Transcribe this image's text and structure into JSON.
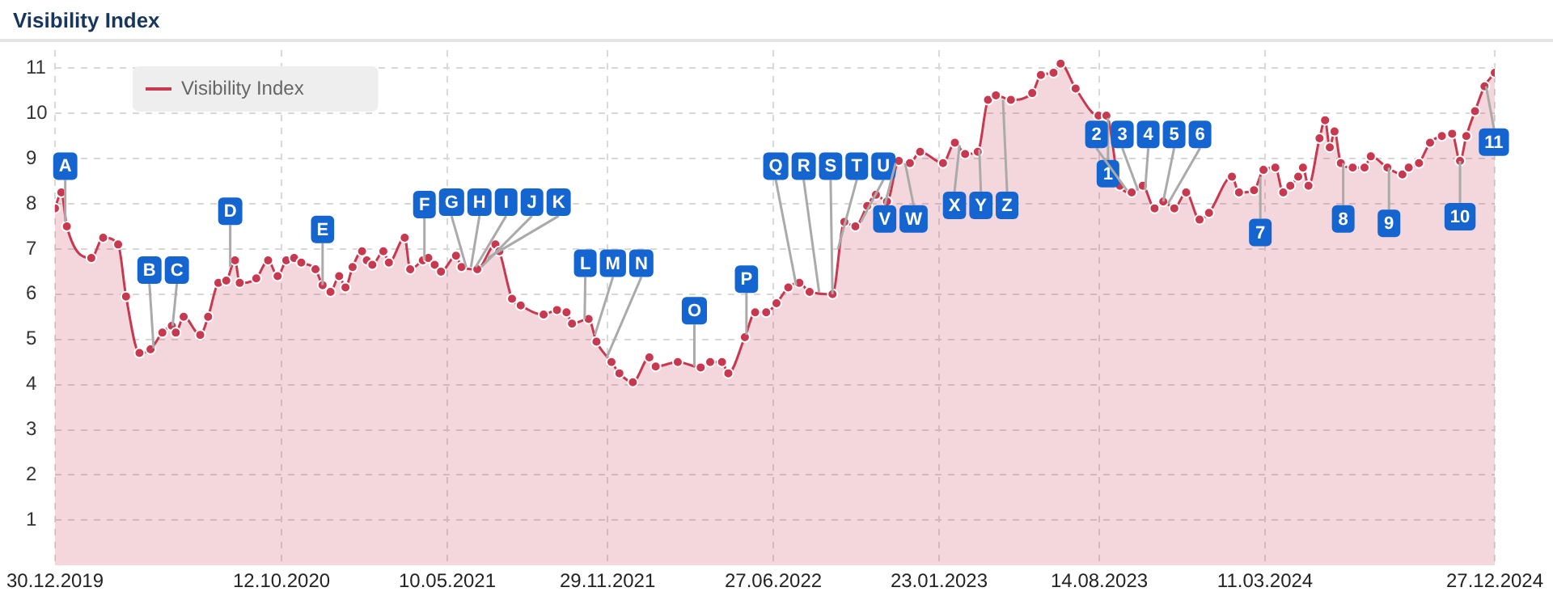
{
  "chart_data": {
    "type": "area",
    "title": "Visibility Index",
    "x": [
      "2019-12-30",
      "2020-01-07",
      "2020-01-14",
      "2020-02-14",
      "2020-02-29",
      "2020-03-19",
      "2020-03-29",
      "2020-04-15",
      "2020-04-29",
      "2020-05-14",
      "2020-05-26",
      "2020-05-31",
      "2020-06-10",
      "2020-07-01",
      "2020-07-11",
      "2020-07-24",
      "2020-08-03",
      "2020-08-14",
      "2020-08-20",
      "2020-09-10",
      "2020-09-25",
      "2020-10-07",
      "2020-10-18",
      "2020-10-28",
      "2020-11-06",
      "2020-11-24",
      "2020-12-03",
      "2020-12-13",
      "2020-12-24",
      "2021-01-01",
      "2021-01-10",
      "2021-01-22",
      "2021-01-28",
      "2021-02-04",
      "2021-02-18",
      "2021-02-25",
      "2021-03-17",
      "2021-03-24",
      "2021-04-09",
      "2021-04-16",
      "2021-04-24",
      "2021-05-02",
      "2021-05-21",
      "2021-05-28",
      "2021-06-17",
      "2021-07-10",
      "2021-07-15",
      "2021-07-31",
      "2021-08-11",
      "2021-09-09",
      "2021-09-26",
      "2021-10-08",
      "2021-10-15",
      "2021-11-05",
      "2021-11-15",
      "2021-12-04",
      "2021-12-14",
      "2021-12-31",
      "2022-01-21",
      "2022-01-29",
      "2022-02-26",
      "2022-03-27",
      "2022-04-08",
      "2022-04-23",
      "2022-05-01",
      "2022-05-22",
      "2022-06-04",
      "2022-06-18",
      "2022-07-01",
      "2022-07-16",
      "2022-07-30",
      "2022-08-12",
      "2022-09-10",
      "2022-09-25",
      "2022-10-09",
      "2022-10-24",
      "2022-11-04",
      "2022-11-18",
      "2022-12-03",
      "2022-12-17",
      "2022-12-30",
      "2023-01-28",
      "2023-02-12",
      "2023-02-25",
      "2023-03-13",
      "2023-03-26",
      "2023-04-05",
      "2023-04-24",
      "2023-05-21",
      "2023-06-01",
      "2023-06-17",
      "2023-06-26",
      "2023-07-15",
      "2023-08-13",
      "2023-08-23",
      "2023-09-09",
      "2023-09-24",
      "2023-10-08",
      "2023-10-23",
      "2023-11-03",
      "2023-11-17",
      "2023-12-02",
      "2023-12-19",
      "2023-12-31",
      "2024-01-29",
      "2024-02-07",
      "2024-02-26",
      "2024-03-09",
      "2024-03-24",
      "2024-04-03",
      "2024-04-12",
      "2024-04-22",
      "2024-04-28",
      "2024-05-05",
      "2024-05-19",
      "2024-05-26",
      "2024-06-01",
      "2024-06-07",
      "2024-06-15",
      "2024-06-30",
      "2024-07-15",
      "2024-07-23",
      "2024-08-13",
      "2024-09-01",
      "2024-09-09",
      "2024-09-22",
      "2024-10-06",
      "2024-10-21",
      "2024-11-03",
      "2024-11-13",
      "2024-11-21",
      "2024-12-02",
      "2024-12-14",
      "2024-12-27"
    ],
    "series": [
      {
        "name": "Visibility Index",
        "color": "#c8384f",
        "values": [
          7.9,
          8.25,
          7.5,
          6.8,
          7.25,
          7.1,
          5.95,
          4.7,
          4.78,
          5.15,
          5.3,
          5.15,
          5.5,
          5.1,
          5.5,
          6.25,
          6.3,
          6.75,
          6.25,
          6.35,
          6.75,
          6.4,
          6.75,
          6.8,
          6.7,
          6.55,
          6.2,
          6.05,
          6.4,
          6.15,
          6.6,
          6.95,
          6.75,
          6.65,
          6.95,
          6.7,
          7.25,
          6.55,
          6.75,
          6.8,
          6.65,
          6.5,
          6.85,
          6.6,
          6.55,
          7.1,
          6.95,
          5.9,
          5.75,
          5.55,
          5.65,
          5.6,
          5.35,
          5.45,
          4.95,
          4.5,
          4.25,
          4.05,
          4.6,
          4.4,
          4.5,
          4.38,
          4.5,
          4.5,
          4.25,
          5.05,
          5.6,
          5.6,
          5.8,
          6.15,
          6.25,
          6.05,
          6.0,
          7.6,
          7.5,
          7.95,
          8.2,
          8.05,
          8.95,
          8.9,
          9.15,
          8.9,
          9.35,
          9.1,
          9.15,
          10.3,
          10.4,
          10.3,
          10.45,
          10.85,
          10.9,
          11.1,
          10.55,
          9.95,
          9.95,
          8.4,
          8.25,
          8.4,
          7.9,
          8.05,
          7.9,
          8.25,
          7.65,
          7.8,
          8.6,
          8.25,
          8.3,
          8.75,
          8.8,
          8.25,
          8.4,
          8.6,
          8.8,
          8.4,
          9.45,
          9.85,
          9.25,
          9.6,
          8.9,
          8.8,
          8.8,
          9.05,
          8.8,
          8.65,
          8.8,
          8.9,
          9.35,
          9.5,
          9.55,
          8.95,
          9.5,
          10.05,
          10.6,
          10.9
        ]
      }
    ],
    "xlim": [
      "2019-12-30",
      "2024-12-27"
    ],
    "xticks": [
      {
        "value": "2019-12-30",
        "label": "30.12.2019"
      },
      {
        "value": "2020-10-12",
        "label": "12.10.2020"
      },
      {
        "value": "2021-05-10",
        "label": "10.05.2021"
      },
      {
        "value": "2021-11-29",
        "label": "29.11.2021"
      },
      {
        "value": "2022-06-27",
        "label": "27.06.2022"
      },
      {
        "value": "2023-01-23",
        "label": "23.01.2023"
      },
      {
        "value": "2023-08-14",
        "label": "14.08.2023"
      },
      {
        "value": "2024-03-11",
        "label": "11.03.2024"
      },
      {
        "value": "2024-12-27",
        "label": "27.12.2024"
      }
    ],
    "ylim": [
      0,
      11.4
    ],
    "yticks": [
      1,
      2,
      3,
      4,
      5,
      6,
      7,
      8,
      9,
      10,
      11
    ],
    "grid": true,
    "legend": "top left",
    "marker": "circle",
    "annotations": [
      {
        "text": "A",
        "x": "2020-01-12",
        "y": 7.6
      },
      {
        "text": "B",
        "x": "2020-05-03",
        "y": 4.8
      },
      {
        "text": "C",
        "x": "2020-05-27",
        "y": 5.3
      },
      {
        "text": "D",
        "x": "2020-08-08",
        "y": 6.6
      },
      {
        "text": "E",
        "x": "2020-12-03",
        "y": 6.2
      },
      {
        "text": "F",
        "x": "2021-04-11",
        "y": 6.75
      },
      {
        "text": "G",
        "x": "2021-06-03",
        "y": 6.6
      },
      {
        "text": "H",
        "x": "2021-06-09",
        "y": 6.6
      },
      {
        "text": "I",
        "x": "2021-06-15",
        "y": 6.6
      },
      {
        "text": "J",
        "x": "2021-06-22",
        "y": 6.6
      },
      {
        "text": "K",
        "x": "2021-06-30",
        "y": 6.8
      },
      {
        "text": "L",
        "x": "2021-10-31",
        "y": 5.45
      },
      {
        "text": "M",
        "x": "2021-11-13",
        "y": 5.1
      },
      {
        "text": "N",
        "x": "2021-11-28",
        "y": 4.6
      },
      {
        "text": "O",
        "x": "2022-03-19",
        "y": 4.4
      },
      {
        "text": "P",
        "x": "2022-05-24",
        "y": 5.1
      },
      {
        "text": "Q",
        "x": "2022-07-26",
        "y": 6.2
      },
      {
        "text": "R",
        "x": "2022-08-24",
        "y": 6.05
      },
      {
        "text": "S",
        "x": "2022-09-10",
        "y": 6.0
      },
      {
        "text": "T",
        "x": "2022-09-17",
        "y": 7.0
      },
      {
        "text": "U",
        "x": "2022-10-16",
        "y": 7.6
      },
      {
        "text": "V",
        "x": "2022-11-29",
        "y": 8.9
      },
      {
        "text": "W",
        "x": "2022-12-11",
        "y": 8.9
      },
      {
        "text": "X",
        "x": "2023-02-18",
        "y": 9.3
      },
      {
        "text": "Y",
        "x": "2023-03-15",
        "y": 9.2
      },
      {
        "text": "Z",
        "x": "2023-04-14",
        "y": 10.3
      },
      {
        "text": "1",
        "x": "2023-08-25",
        "y": 9.9
      },
      {
        "text": "2",
        "x": "2023-09-18",
        "y": 8.3
      },
      {
        "text": "3",
        "x": "2023-10-02",
        "y": 8.3
      },
      {
        "text": "4",
        "x": "2023-10-11",
        "y": 8.3
      },
      {
        "text": "5",
        "x": "2023-11-03",
        "y": 8.05
      },
      {
        "text": "6",
        "x": "2023-11-09",
        "y": 8.0
      },
      {
        "text": "7",
        "x": "2024-03-05",
        "y": 8.6
      },
      {
        "text": "8",
        "x": "2024-06-18",
        "y": 8.9
      },
      {
        "text": "9",
        "x": "2024-08-15",
        "y": 8.8
      },
      {
        "text": "10",
        "x": "2024-11-13",
        "y": 8.95
      },
      {
        "text": "11",
        "x": "2024-12-16",
        "y": 10.6
      }
    ]
  }
}
